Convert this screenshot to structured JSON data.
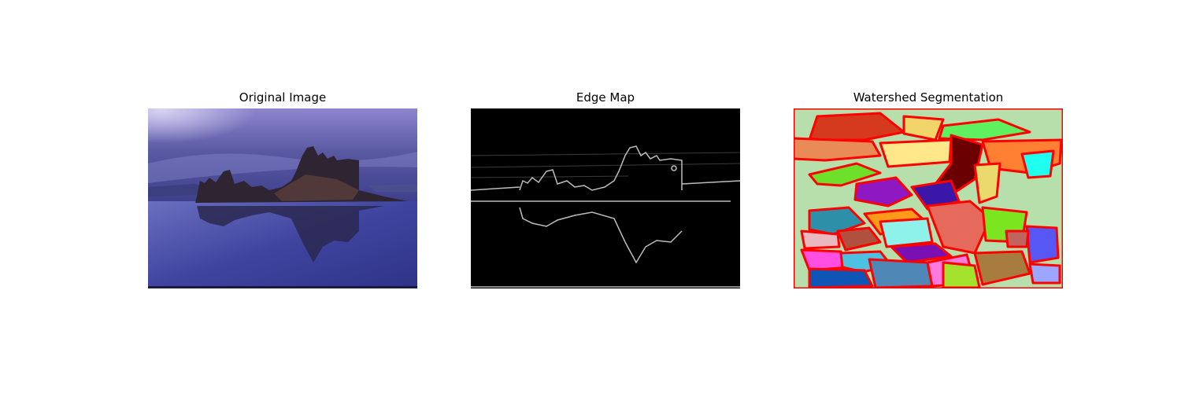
{
  "figure": {
    "panels": [
      {
        "title": "Original Image",
        "image_content": "photo of rock tufa formation reflected in calm water under a purple sky"
      },
      {
        "title": "Edge Map",
        "image_content": "grayscale edge-detection result on black background"
      },
      {
        "title": "Watershed Segmentation",
        "image_content": "multicolored segmented regions with red boundaries"
      }
    ]
  },
  "colors": {
    "sky_top": "#9f9bd2",
    "sky_mid": "#4d4f98",
    "water": "#3f3f9b",
    "rock": "#3a2c3a",
    "edge_background": "#000000",
    "edge_line": "#d9d9d9",
    "segment_border": "#ff0000",
    "segment_background": "#b6dfac"
  }
}
